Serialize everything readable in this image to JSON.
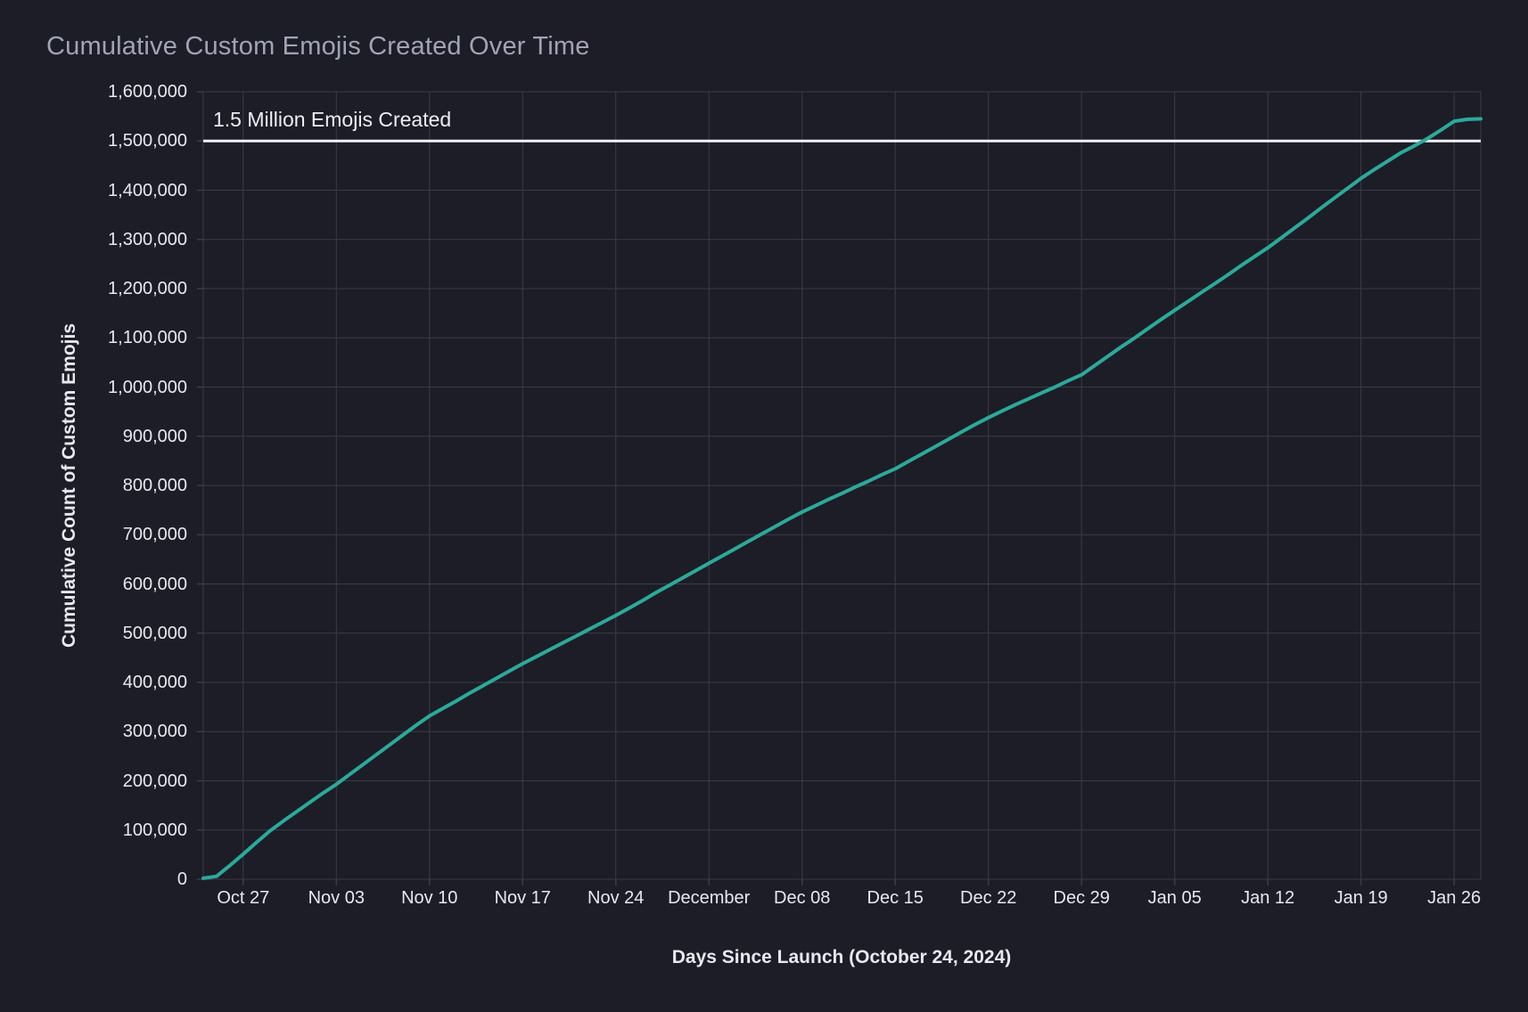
{
  "colors": {
    "background": "#1c1d27",
    "line": "#2ca99b",
    "grid": "#3a3c49",
    "reference_line": "#f0f1f5",
    "title_text": "#a0a4b5",
    "tick_text": "#e8e9ee"
  },
  "chart_data": {
    "type": "line",
    "title": "Cumulative Custom Emojis Created Over Time",
    "xlabel": "Days Since Launch (October 24, 2024)",
    "ylabel": "Cumulative Count of Custom Emojis",
    "launch_date": "October 24, 2024",
    "xlim_days": [
      0,
      96
    ],
    "ylim": [
      0,
      1600000
    ],
    "grid": true,
    "legend": "none",
    "x_ticks": [
      {
        "day": 3,
        "label": "Oct 27"
      },
      {
        "day": 10,
        "label": "Nov 03"
      },
      {
        "day": 17,
        "label": "Nov 10"
      },
      {
        "day": 24,
        "label": "Nov 17"
      },
      {
        "day": 31,
        "label": "Nov 24"
      },
      {
        "day": 38,
        "label": "December"
      },
      {
        "day": 45,
        "label": "Dec 08"
      },
      {
        "day": 52,
        "label": "Dec 15"
      },
      {
        "day": 59,
        "label": "Dec 22"
      },
      {
        "day": 66,
        "label": "Dec 29"
      },
      {
        "day": 73,
        "label": "Jan 05"
      },
      {
        "day": 80,
        "label": "Jan 12"
      },
      {
        "day": 87,
        "label": "Jan 19"
      },
      {
        "day": 94,
        "label": "Jan 26"
      }
    ],
    "y_ticks": [
      {
        "value": 0,
        "label": "0"
      },
      {
        "value": 100000,
        "label": "100,000"
      },
      {
        "value": 200000,
        "label": "200,000"
      },
      {
        "value": 300000,
        "label": "300,000"
      },
      {
        "value": 400000,
        "label": "400,000"
      },
      {
        "value": 500000,
        "label": "500,000"
      },
      {
        "value": 600000,
        "label": "600,000"
      },
      {
        "value": 700000,
        "label": "700,000"
      },
      {
        "value": 800000,
        "label": "800,000"
      },
      {
        "value": 900000,
        "label": "900,000"
      },
      {
        "value": 1000000,
        "label": "1,000,000"
      },
      {
        "value": 1100000,
        "label": "1,100,000"
      },
      {
        "value": 1200000,
        "label": "1,200,000"
      },
      {
        "value": 1300000,
        "label": "1,300,000"
      },
      {
        "value": 1400000,
        "label": "1,400,000"
      },
      {
        "value": 1500000,
        "label": "1,500,000"
      },
      {
        "value": 1600000,
        "label": "1,600,000"
      }
    ],
    "reference_line": {
      "value": 1500000,
      "label": "1.5 Million Emojis Created"
    },
    "series": [
      {
        "name": "Cumulative custom emojis created",
        "x_days": [
          0,
          1,
          2,
          3,
          4,
          5,
          6,
          7,
          8,
          9,
          10,
          11,
          12,
          13,
          14,
          15,
          16,
          17,
          18,
          19,
          20,
          21,
          22,
          23,
          24,
          25,
          26,
          27,
          28,
          29,
          30,
          31,
          32,
          33,
          34,
          35,
          36,
          37,
          38,
          39,
          40,
          41,
          42,
          43,
          44,
          45,
          46,
          47,
          48,
          49,
          50,
          51,
          52,
          53,
          54,
          55,
          56,
          57,
          58,
          59,
          60,
          61,
          62,
          63,
          64,
          65,
          66,
          67,
          68,
          69,
          70,
          71,
          72,
          73,
          74,
          75,
          76,
          77,
          78,
          79,
          80,
          81,
          82,
          83,
          84,
          85,
          86,
          87,
          88,
          89,
          90,
          91,
          92,
          93,
          94,
          95,
          96
        ],
        "values": [
          2000,
          6000,
          28000,
          51000,
          75000,
          98000,
          118000,
          137000,
          156000,
          175000,
          193000,
          213000,
          233000,
          253000,
          273000,
          293000,
          313000,
          332000,
          347000,
          362000,
          378000,
          393000,
          408000,
          423000,
          438000,
          452000,
          466000,
          480000,
          494000,
          508000,
          522000,
          536000,
          551000,
          566000,
          582000,
          597000,
          612000,
          627000,
          642000,
          657000,
          672000,
          687000,
          702000,
          717000,
          732000,
          746000,
          759000,
          772000,
          784000,
          797000,
          809000,
          822000,
          834000,
          849000,
          864000,
          879000,
          894000,
          909000,
          924000,
          938000,
          951000,
          964000,
          976000,
          988000,
          1000000,
          1013000,
          1025000,
          1044000,
          1063000,
          1082000,
          1100000,
          1119000,
          1138000,
          1156000,
          1174000,
          1192000,
          1210000,
          1228000,
          1247000,
          1265000,
          1283000,
          1303000,
          1323000,
          1343000,
          1364000,
          1384000,
          1404000,
          1424000,
          1442000,
          1459000,
          1476000,
          1490000,
          1505000,
          1522000,
          1540000,
          1544000,
          1545000
        ]
      }
    ]
  }
}
